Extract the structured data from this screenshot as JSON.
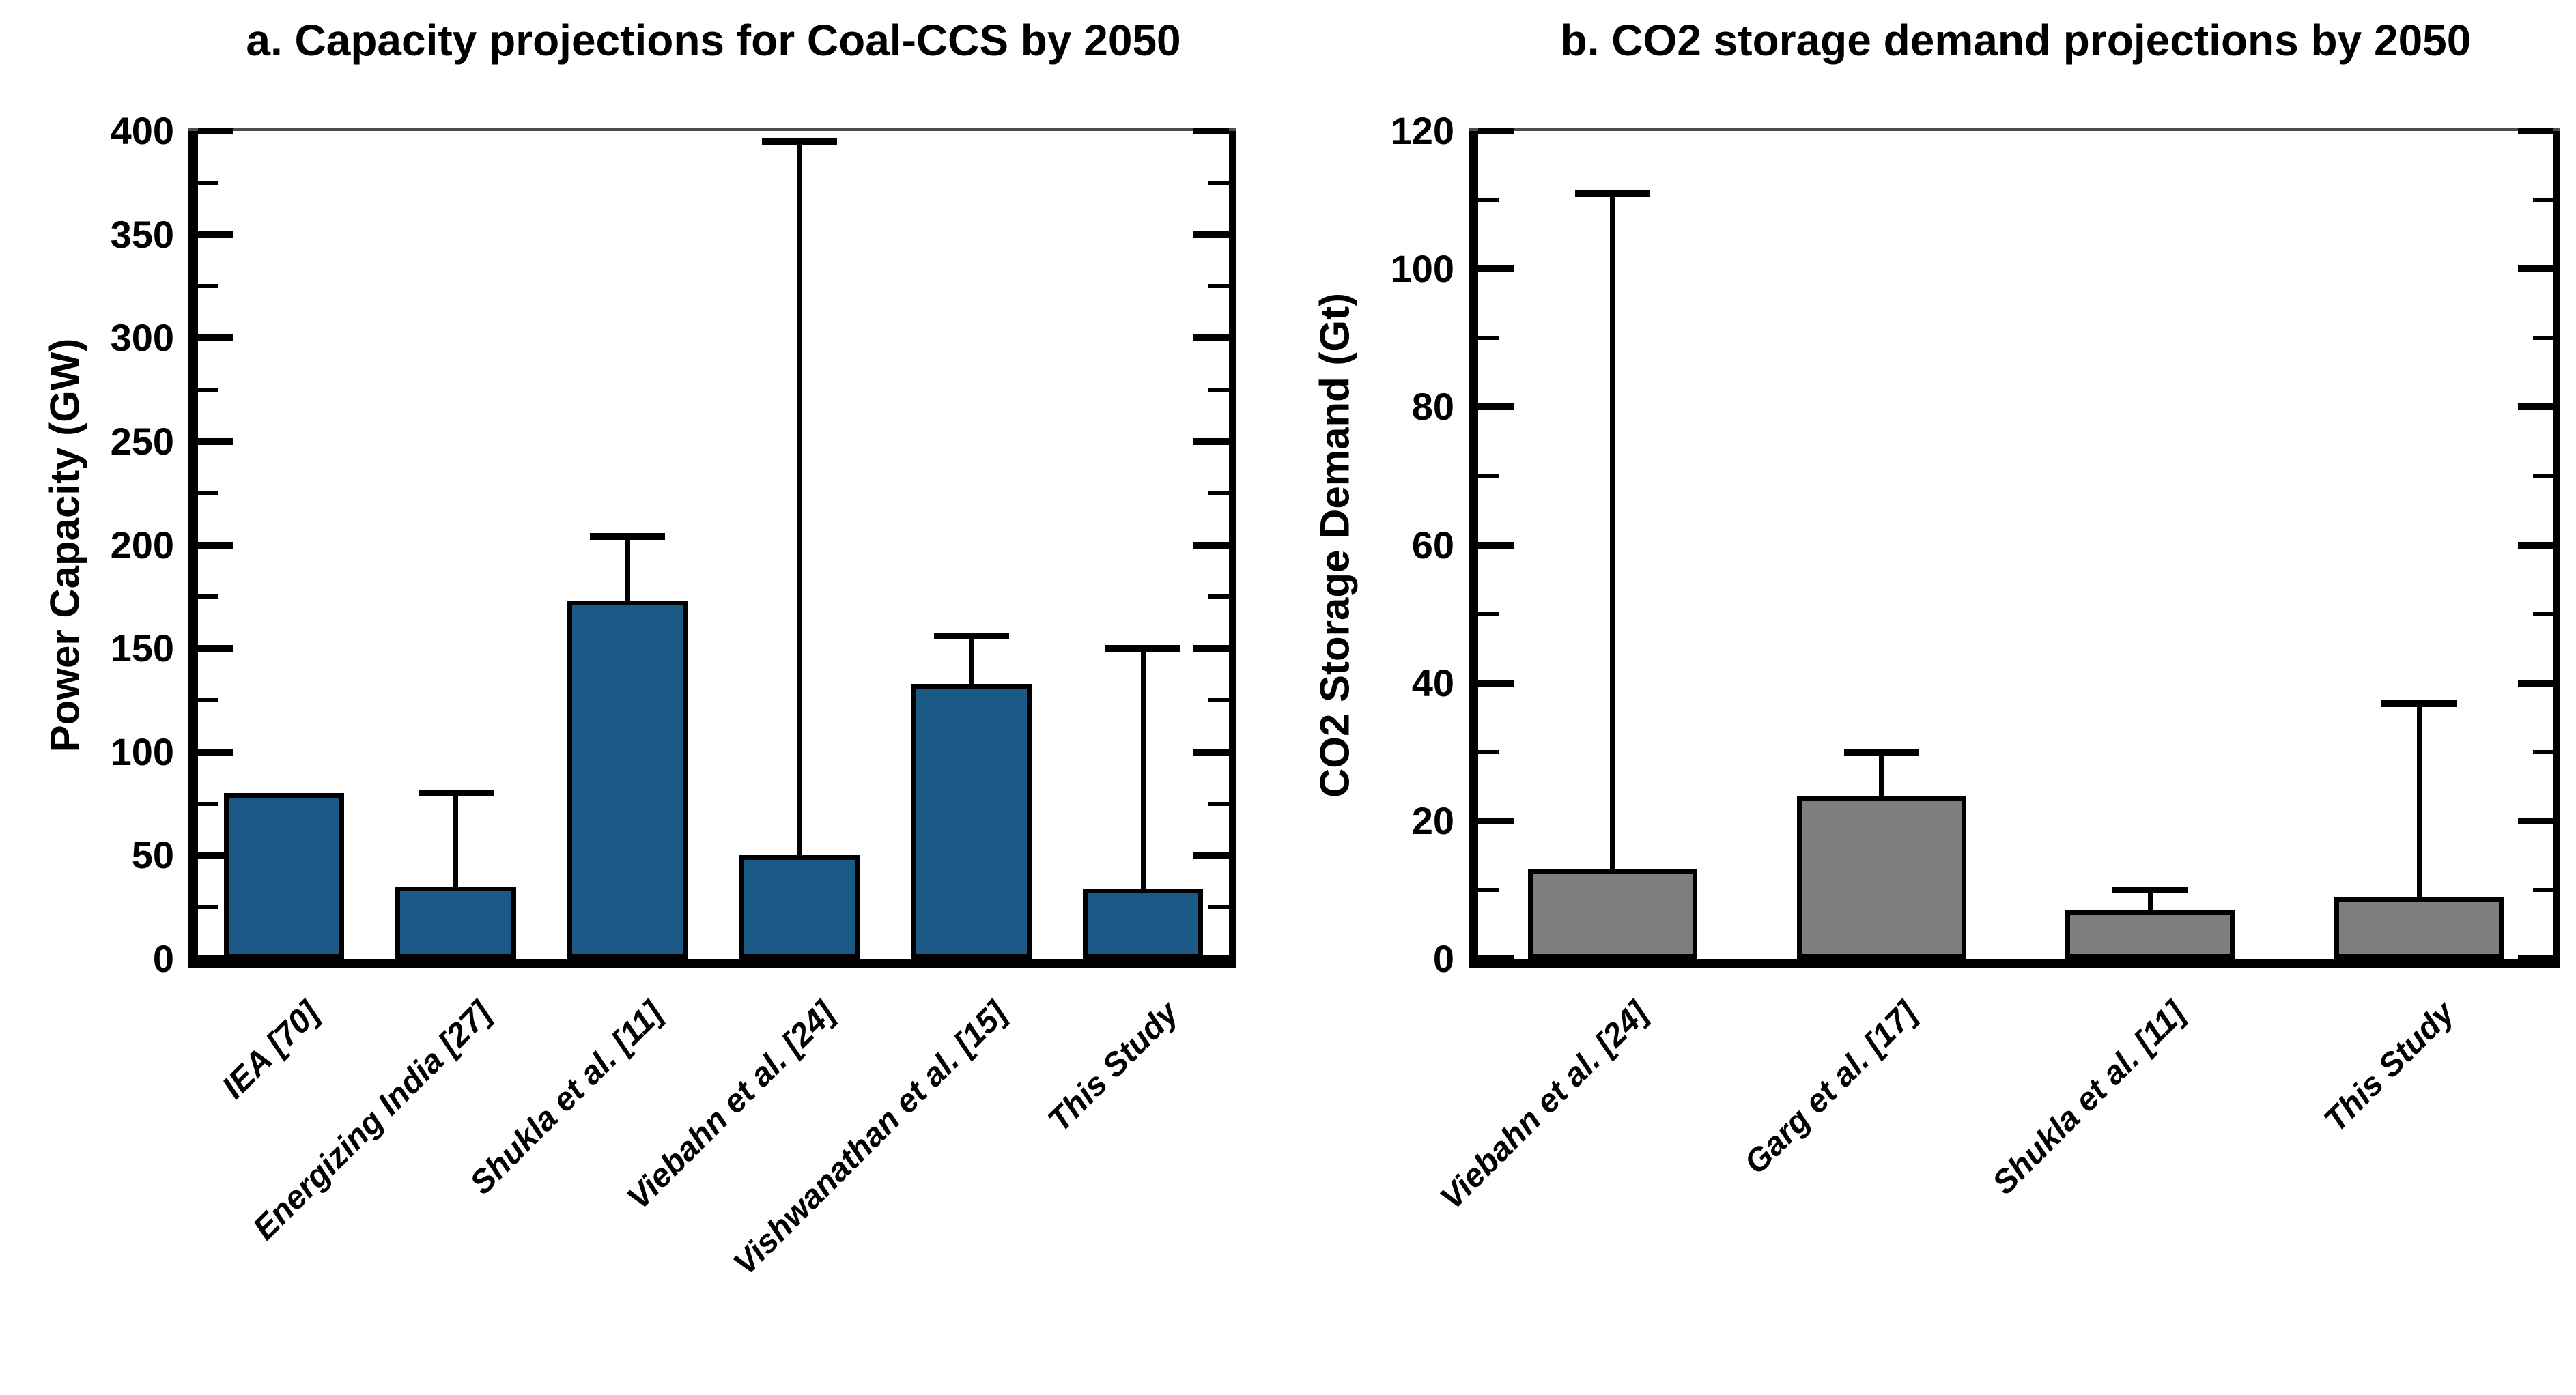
{
  "figure": {
    "background_color": "#ffffff",
    "text_color": "#000000",
    "axis_color": "#000000",
    "top_border_color": "#4d4d4d"
  },
  "chart_data": [
    {
      "type": "bar",
      "panel": "a",
      "title": "a. Capacity projections for Coal-CCS by 2050",
      "ylabel": "Power Capacity (GW)",
      "xlabel": "",
      "ylim": [
        0,
        400
      ],
      "ytick_major_step": 50,
      "ytick_minor_step": 25,
      "ytick_labels": [
        "0",
        "50",
        "100",
        "150",
        "200",
        "250",
        "300",
        "350",
        "400"
      ],
      "grid": false,
      "legend": false,
      "bar_color": "#1b5a87",
      "bar_border_color": "#000000",
      "categories": [
        "IEA [70]",
        "Energizing India [27]",
        "Shukla et al. [11]",
        "Viebahn et al. [24]",
        "Vishwanathan et al. [15]",
        "This Study"
      ],
      "values": [
        80,
        35,
        173,
        50,
        133,
        34
      ],
      "error_top": [
        null,
        80,
        204,
        395,
        156,
        150
      ]
    },
    {
      "type": "bar",
      "panel": "b",
      "title": "b. CO2 storage demand projections by 2050",
      "ylabel": "CO2 Storage Demand (Gt)",
      "xlabel": "",
      "ylim": [
        0,
        120
      ],
      "ytick_major_step": 20,
      "ytick_minor_step": 10,
      "ytick_labels": [
        "0",
        "20",
        "40",
        "60",
        "80",
        "100",
        "120"
      ],
      "grid": false,
      "legend": false,
      "bar_color": "#7e7e7e",
      "bar_border_color": "#000000",
      "categories": [
        "Viebahn et al. [24]",
        "Garg et al. [17]",
        "Shukla et al. [11]",
        "This Study"
      ],
      "values": [
        13,
        23.5,
        7,
        9
      ],
      "error_top": [
        111,
        30,
        10,
        37
      ]
    }
  ]
}
